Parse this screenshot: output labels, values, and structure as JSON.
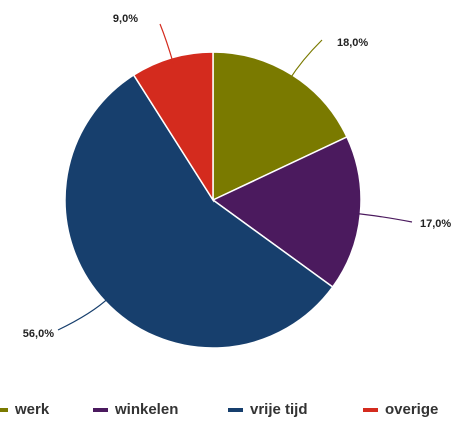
{
  "chart_data": {
    "type": "pie",
    "categories": [
      "werk",
      "winkelen",
      "vrije tijd",
      "overige"
    ],
    "values": [
      18,
      17,
      56,
      9
    ],
    "value_labels": [
      "18,0%",
      "17,0%",
      "56,0%",
      "9,0%"
    ],
    "colors": [
      "#7a7a00",
      "#4b1a5e",
      "#173f6d",
      "#d42b1e"
    ],
    "legend": "bottom"
  }
}
